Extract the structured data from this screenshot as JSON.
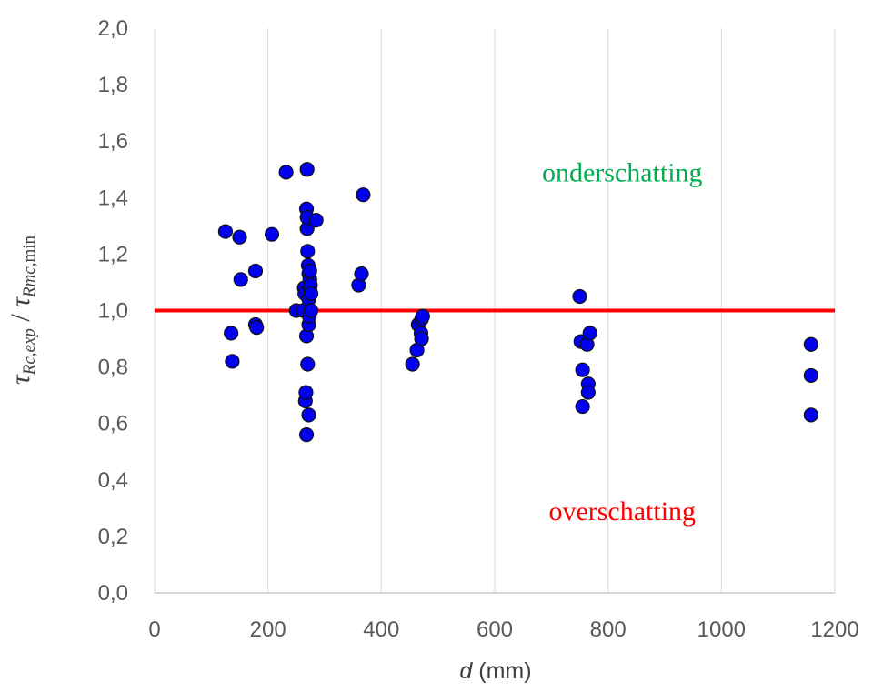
{
  "chart_data": {
    "type": "scatter",
    "title": "",
    "xlabel_italic": "d",
    "xlabel_rest": " (mm)",
    "ylabel_num": "τ",
    "ylabel_num_sub": "Rc,exp",
    "ylabel_sep": " / ",
    "ylabel_den": "τ",
    "ylabel_den_sub_italic": "Rmc",
    "ylabel_den_sub_rest": ",min",
    "xlim": [
      0,
      1200
    ],
    "ylim": [
      0,
      2.0
    ],
    "x_ticks": [
      0,
      200,
      400,
      600,
      800,
      1000,
      1200
    ],
    "x_tick_labels": [
      "0",
      "200",
      "400",
      "600",
      "800",
      "1000",
      "1200"
    ],
    "y_ticks": [
      0,
      0.2,
      0.4,
      0.6,
      0.8,
      1.0,
      1.2,
      1.4,
      1.6,
      1.8,
      2.0
    ],
    "y_tick_labels": [
      "0,0",
      "0,2",
      "0,4",
      "0,6",
      "0,8",
      "1,0",
      "1,2",
      "1,4",
      "1,6",
      "1,8",
      "2,0"
    ],
    "grid": "vertical",
    "reference_line": {
      "y": 1.0,
      "color": "#ff0000"
    },
    "marker_color": "#0000ee",
    "annotations": [
      {
        "text": "onderschatting",
        "x": 825,
        "y": 1.49,
        "color": "#00b050"
      },
      {
        "text": "overschatting",
        "x": 825,
        "y": 0.29,
        "color": "#ff0000"
      }
    ],
    "series": [
      {
        "points": [
          [
            125,
            1.28
          ],
          [
            135,
            0.92
          ],
          [
            137,
            0.82
          ],
          [
            150,
            1.26
          ],
          [
            152,
            1.11
          ],
          [
            178,
            1.14
          ],
          [
            178,
            0.95
          ],
          [
            180,
            0.94
          ],
          [
            207,
            1.27
          ],
          [
            232,
            1.49
          ],
          [
            250,
            1.0
          ],
          [
            262,
            1.0
          ],
          [
            264,
            1.08
          ],
          [
            265,
            1.06
          ],
          [
            266,
            0.68
          ],
          [
            267,
            0.71
          ],
          [
            268,
            1.36
          ],
          [
            268,
            0.91
          ],
          [
            268,
            0.56
          ],
          [
            269,
            1.5
          ],
          [
            269,
            1.29
          ],
          [
            269,
            1.33
          ],
          [
            270,
            1.21
          ],
          [
            270,
            0.81
          ],
          [
            271,
            1.16
          ],
          [
            272,
            1.13
          ],
          [
            272,
            1.04
          ],
          [
            272,
            0.95
          ],
          [
            272,
            0.63
          ],
          [
            273,
            0.98
          ],
          [
            274,
            1.11
          ],
          [
            274,
            1.14
          ],
          [
            274,
            1.08
          ],
          [
            275,
            1.09
          ],
          [
            276,
            1.0
          ],
          [
            276,
            1.06
          ],
          [
            285,
            1.32
          ],
          [
            360,
            1.09
          ],
          [
            365,
            1.13
          ],
          [
            368,
            1.41
          ],
          [
            455,
            0.81
          ],
          [
            463,
            0.86
          ],
          [
            465,
            0.95
          ],
          [
            470,
            0.92
          ],
          [
            471,
            0.97
          ],
          [
            471,
            0.9
          ],
          [
            473,
            0.98
          ],
          [
            750,
            1.05
          ],
          [
            752,
            0.89
          ],
          [
            755,
            0.79
          ],
          [
            755,
            0.66
          ],
          [
            763,
            0.88
          ],
          [
            765,
            0.74
          ],
          [
            765,
            0.71
          ],
          [
            768,
            0.92
          ],
          [
            1158,
            0.88
          ],
          [
            1158,
            0.77
          ],
          [
            1158,
            0.63
          ]
        ]
      }
    ]
  }
}
